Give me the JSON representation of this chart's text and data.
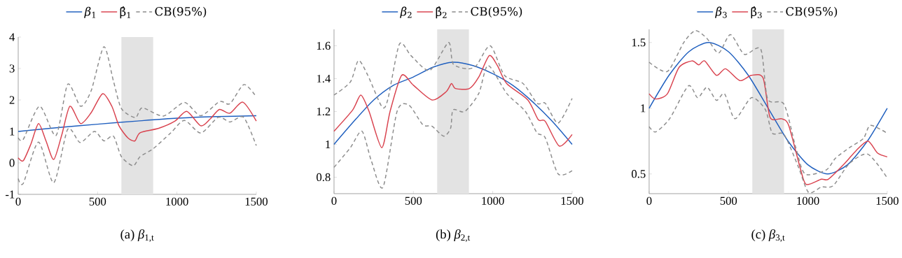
{
  "chart_data": [
    {
      "type": "line",
      "title": "(a) *β*$_{1,t}$",
      "legend": "top",
      "xlim": [
        0,
        1500
      ],
      "xticks": [
        0,
        500,
        1000,
        1500
      ],
      "ylim": [
        -1,
        4
      ],
      "yticks": [
        -1,
        0,
        1,
        2,
        3,
        4
      ],
      "bands": [
        {
          "axis": "x",
          "from": 650,
          "to": 850,
          "color": "#e3e3e3"
        }
      ],
      "series": [
        {
          "name": "*β*$_{1}$",
          "color": "#1f5fbf",
          "x": [
            0,
            250,
            500,
            750,
            1000,
            1250,
            1500
          ],
          "values": [
            1,
            1.12,
            1.23,
            1.33,
            1.42,
            1.47,
            1.5
          ]
        },
        {
          "name": "β̂$_{1}$",
          "color": "#d9434f",
          "x": [
            0,
            32,
            80,
            128,
            175,
            224,
            275,
            326,
            393,
            460,
            532,
            590,
            635,
            690,
            735,
            768,
            885,
            988,
            1062,
            1150,
            1210,
            1268,
            1334,
            1415,
            1500
          ],
          "values": [
            0.16,
            0.07,
            0.6,
            1.25,
            0.7,
            0.11,
            0.9,
            1.8,
            1.25,
            1.6,
            2.2,
            1.8,
            1.18,
            0.8,
            0.7,
            0.96,
            1.1,
            1.33,
            1.64,
            1.18,
            1.4,
            1.7,
            1.58,
            1.93,
            1.33
          ]
        },
        {
          "name": "CB(95%)",
          "color": "#8c8c8c",
          "line_style": "dashed",
          "x": [
            0,
            32,
            135,
            238,
            312,
            393,
            460,
            540,
            600,
            650,
            738,
            782,
            915,
            1047,
            1150,
            1268,
            1334,
            1422,
            1500
          ],
          "values": [
            0.8,
            0.75,
            1.8,
            0.87,
            2.5,
            1.8,
            2.3,
            3.69,
            2.6,
            1.73,
            1.44,
            1.75,
            1.49,
            1.92,
            1.5,
            1.95,
            1.88,
            2.49,
            2.1
          ]
        },
        {
          "color": "#8c8c8c",
          "line_style": "dashed",
          "x": [
            0,
            32,
            128,
            224,
            312,
            390,
            480,
            540,
            600,
            650,
            724,
            768,
            850,
            960,
            1047,
            1150,
            1260,
            1334,
            1420,
            1500
          ],
          "values": [
            -0.5,
            -0.65,
            0.66,
            -0.63,
            1.07,
            0.65,
            1.0,
            0.7,
            0.85,
            0.2,
            -0.09,
            0.2,
            0.45,
            0.95,
            1.35,
            0.95,
            1.45,
            1.3,
            1.45,
            0.55
          ]
        }
      ]
    },
    {
      "type": "line",
      "title": "(b) *β*$_{2,t}$",
      "legend": "top",
      "xlim": [
        0,
        1500
      ],
      "xticks": [
        0,
        500,
        1000,
        1500
      ],
      "ylim": [
        0.7,
        1.7
      ],
      "yticks": [
        0.8,
        1,
        1.2,
        1.4,
        1.6
      ],
      "bands": [
        {
          "axis": "x",
          "from": 650,
          "to": 850,
          "color": "#e3e3e3"
        }
      ],
      "series": [
        {
          "name": "*β*$_{2}$",
          "color": "#1f5fbf",
          "x": [
            0,
            125,
            250,
            375,
            500,
            625,
            750,
            875,
            1000,
            1125,
            1250,
            1375,
            1500
          ],
          "values": [
            1,
            1.14,
            1.27,
            1.36,
            1.41,
            1.47,
            1.5,
            1.48,
            1.43,
            1.36,
            1.26,
            1.14,
            1.0
          ]
        },
        {
          "name": "β̂$_{2}$",
          "color": "#d9434f",
          "x": [
            0,
            118,
            169,
            221,
            301,
            353,
            426,
            500,
            618,
            706,
            740,
            765,
            853,
            912,
            978,
            1029,
            1088,
            1221,
            1287,
            1331,
            1419,
            1500
          ],
          "values": [
            1.08,
            1.21,
            1.3,
            1.2,
            0.98,
            1.2,
            1.42,
            1.36,
            1.27,
            1.32,
            1.37,
            1.34,
            1.34,
            1.41,
            1.54,
            1.48,
            1.37,
            1.27,
            1.15,
            1.14,
            0.99,
            1.06
          ]
        },
        {
          "name": "CB(95%)",
          "color": "#8c8c8c",
          "line_style": "dashed",
          "x": [
            0,
            103,
            154,
            213,
            301,
            338,
            412,
            485,
            603,
            721,
            750,
            838,
            897,
            985,
            1074,
            1191,
            1279,
            1331,
            1412,
            1500
          ],
          "values": [
            1.3,
            1.38,
            1.51,
            1.42,
            1.23,
            1.27,
            1.61,
            1.54,
            1.45,
            1.62,
            1.49,
            1.46,
            1.48,
            1.6,
            1.42,
            1.37,
            1.25,
            1.25,
            1.13,
            1.28
          ]
        },
        {
          "color": "#8c8c8c",
          "line_style": "dashed",
          "x": [
            0,
            103,
            176,
            235,
            309,
            397,
            471,
            559,
            618,
            691,
            735,
            750,
            824,
            912,
            971,
            1088,
            1206,
            1279,
            1331,
            1412,
            1500
          ],
          "values": [
            0.86,
            0.98,
            1.08,
            0.9,
            0.74,
            1.2,
            1.24,
            1.12,
            1.11,
            1.05,
            1.1,
            1.21,
            1.2,
            1.31,
            1.48,
            1.31,
            1.2,
            1.07,
            1.04,
            0.82,
            0.84
          ]
        }
      ]
    },
    {
      "type": "line",
      "title": "(c) *β*$_{3,t}$",
      "legend": "top",
      "xlim": [
        0,
        1500
      ],
      "xticks": [
        0,
        500,
        1000,
        1500
      ],
      "ylim": [
        0.35,
        1.6
      ],
      "yticks": [
        0.5,
        1,
        1.5
      ],
      "bands": [
        {
          "axis": "x",
          "from": 650,
          "to": 850,
          "color": "#e3e3e3"
        }
      ],
      "series": [
        {
          "name": "*β*$_{3}$",
          "color": "#1f5fbf",
          "x": [
            0,
            125,
            250,
            375,
            500,
            625,
            750,
            875,
            1000,
            1125,
            1250,
            1375,
            1500
          ],
          "values": [
            1,
            1.25,
            1.43,
            1.5,
            1.43,
            1.25,
            1.0,
            0.75,
            0.57,
            0.5,
            0.57,
            0.75,
            1.0
          ]
        },
        {
          "name": "β̂$_{3}$",
          "color": "#d9434f",
          "x": [
            0,
            41,
            115,
            188,
            269,
            313,
            350,
            424,
            482,
            571,
            644,
            718,
            762,
            835,
            879,
            953,
            990,
            1085,
            1129,
            1232,
            1306,
            1379,
            1438,
            1500
          ],
          "values": [
            1.11,
            1.07,
            1.11,
            1.31,
            1.36,
            1.33,
            1.36,
            1.25,
            1.3,
            1.21,
            1.25,
            1.23,
            0.93,
            0.92,
            0.87,
            0.54,
            0.42,
            0.46,
            0.46,
            0.58,
            0.68,
            0.75,
            0.66,
            0.63
          ]
        },
        {
          "name": "CB(95%)",
          "color": "#8c8c8c",
          "line_style": "dashed",
          "x": [
            0,
            115,
            218,
            291,
            365,
            438,
            512,
            600,
            703,
            747,
            850,
            924,
            982,
            1115,
            1174,
            1262,
            1350,
            1394,
            1500
          ],
          "values": [
            1.35,
            1.28,
            1.5,
            1.59,
            1.53,
            1.42,
            1.56,
            1.41,
            1.45,
            1.07,
            1.03,
            0.7,
            0.5,
            0.53,
            0.62,
            0.7,
            0.77,
            0.87,
            0.81
          ]
        },
        {
          "color": "#8c8c8c",
          "line_style": "dashed",
          "x": [
            0,
            41,
            129,
            247,
            306,
            365,
            424,
            475,
            541,
            644,
            732,
            776,
            850,
            938,
            1004,
            1085,
            1159,
            1262,
            1379,
            1500
          ],
          "values": [
            0.86,
            0.82,
            0.92,
            1.17,
            1.08,
            1.16,
            1.06,
            1.11,
            0.92,
            1.08,
            0.99,
            0.81,
            0.8,
            0.56,
            0.36,
            0.4,
            0.41,
            0.58,
            0.65,
            0.47
          ]
        }
      ]
    }
  ]
}
